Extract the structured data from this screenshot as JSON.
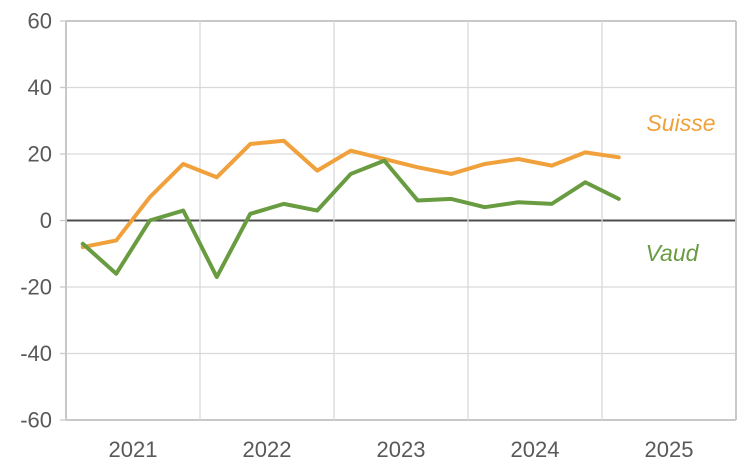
{
  "chart_data": {
    "type": "line",
    "title": "",
    "categories": [
      "2021-Q1",
      "2021-Q2",
      "2021-Q3",
      "2021-Q4",
      "2022-Q1",
      "2022-Q2",
      "2022-Q3",
      "2022-Q4",
      "2023-Q1",
      "2023-Q2",
      "2023-Q3",
      "2023-Q4",
      "2024-Q1",
      "2024-Q2",
      "2024-Q3",
      "2024-Q4",
      "2025-Q1"
    ],
    "x_tick_labels": [
      "2021",
      "2022",
      "2023",
      "2024",
      "2025"
    ],
    "y_ticks": [
      60,
      40,
      20,
      0,
      -20,
      -40,
      -60
    ],
    "ylim": [
      -60,
      60
    ],
    "grid": true,
    "legend": "inline-series-labels",
    "series": [
      {
        "name": "Suisse",
        "color": "#F0A13C",
        "values": [
          -8,
          -6,
          7,
          17,
          13,
          23,
          24,
          15,
          21,
          18.5,
          16,
          14,
          17,
          18.5,
          16.5,
          20.5,
          19
        ]
      },
      {
        "name": "Vaud",
        "color": "#699C41",
        "values": [
          -7,
          -16,
          0,
          3,
          -17,
          2,
          5,
          3,
          14,
          18,
          6,
          6.5,
          4,
          5.5,
          5,
          11.5,
          6.5
        ]
      }
    ],
    "colors": {
      "gridline": "#D9D9D9",
      "plot_border": "#C8C8C8",
      "zero_line": "#4D4D4D",
      "tick_label": "#595959"
    }
  }
}
